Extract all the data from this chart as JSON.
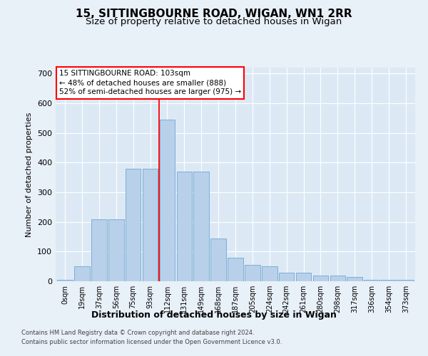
{
  "title1": "15, SITTINGBOURNE ROAD, WIGAN, WN1 2RR",
  "title2": "Size of property relative to detached houses in Wigan",
  "xlabel": "Distribution of detached houses by size in Wigan",
  "ylabel": "Number of detached properties",
  "bar_labels": [
    "0sqm",
    "19sqm",
    "37sqm",
    "56sqm",
    "75sqm",
    "93sqm",
    "112sqm",
    "131sqm",
    "149sqm",
    "168sqm",
    "187sqm",
    "205sqm",
    "224sqm",
    "242sqm",
    "261sqm",
    "280sqm",
    "298sqm",
    "317sqm",
    "336sqm",
    "354sqm",
    "373sqm"
  ],
  "bar_values": [
    5,
    50,
    210,
    210,
    380,
    380,
    545,
    370,
    370,
    145,
    80,
    55,
    50,
    30,
    30,
    20,
    20,
    15,
    5,
    5,
    5
  ],
  "bar_color": "#b8d0ea",
  "bar_edgecolor": "#6fa8d0",
  "vline_x": 5.5,
  "annotation_text": "15 SITTINGBOURNE ROAD: 103sqm\n← 48% of detached houses are smaller (888)\n52% of semi-detached houses are larger (975) →",
  "footer1": "Contains HM Land Registry data © Crown copyright and database right 2024.",
  "footer2": "Contains public sector information licensed under the Open Government Licence v3.0.",
  "ylim": [
    0,
    720
  ],
  "yticks": [
    0,
    100,
    200,
    300,
    400,
    500,
    600,
    700
  ],
  "bg_color": "#dce9f5",
  "fig_bg_color": "#e8f0f8",
  "grid_color": "#ffffff",
  "title1_fontsize": 11,
  "title2_fontsize": 9.5
}
